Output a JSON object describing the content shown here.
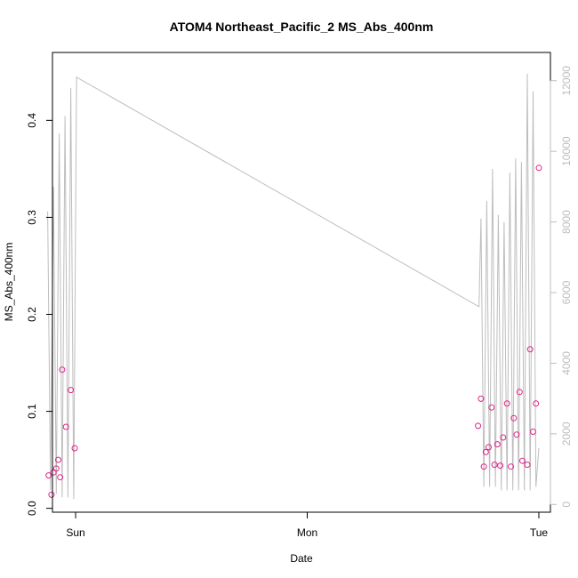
{
  "chart_data": {
    "type": "scatter",
    "title": "ATOM4 Northeast_Pacific_2 MS_Abs_400nm",
    "xlabel": "Date",
    "ylabel": "MS_Abs_400nm",
    "x_ticks": [
      {
        "value": 0,
        "label": "Sun"
      },
      {
        "value": 24,
        "label": "Mon"
      },
      {
        "value": 48,
        "label": "Tue"
      }
    ],
    "xlim": [
      -2.4,
      49.2
    ],
    "ylim": [
      -0.004,
      0.47
    ],
    "y_ticks": [
      0.0,
      0.1,
      0.2,
      0.3,
      0.4
    ],
    "y_tick_labels": [
      "0.0",
      "0.1",
      "0.2",
      "0.3",
      "0.4"
    ],
    "y2lim": [
      -220,
      12800
    ],
    "y2_ticks": [
      0,
      2000,
      4000,
      6000,
      8000,
      10000,
      12000
    ],
    "y2_tick_labels": [
      "0",
      "2000",
      "4000",
      "6000",
      "8000",
      "10000",
      "12000"
    ],
    "grid": false,
    "series": [
      {
        "kind": "points",
        "color": "#e0218a",
        "x": [
          -2.8,
          -2.5,
          -2.3,
          -2.0,
          -1.8,
          -1.6,
          -1.4,
          -1.0,
          -0.5,
          -0.1,
          41.7,
          42.0,
          42.3,
          42.5,
          42.8,
          43.1,
          43.4,
          43.7,
          44.0,
          44.3,
          44.7,
          45.1,
          45.4,
          45.7,
          46.0,
          46.3,
          46.8,
          47.1,
          47.4,
          47.7,
          48.0
        ],
        "y": [
          0.034,
          0.014,
          0.037,
          0.041,
          0.05,
          0.032,
          0.143,
          0.084,
          0.122,
          0.062,
          0.085,
          0.113,
          0.043,
          0.058,
          0.063,
          0.104,
          0.045,
          0.066,
          0.044,
          0.073,
          0.108,
          0.043,
          0.093,
          0.076,
          0.12,
          0.049,
          0.045,
          0.164,
          0.079,
          0.108,
          0.351
        ]
      },
      {
        "kind": "line",
        "color": "#bdbdbd",
        "axis": "right",
        "x": [
          -2.9,
          -2.6,
          -2.3,
          -2.0,
          -1.7,
          -1.4,
          -1.1,
          -0.8,
          -0.5,
          -0.2,
          0.1,
          41.8,
          42.0,
          42.3,
          42.6,
          42.9,
          43.2,
          43.5,
          43.8,
          44.1,
          44.4,
          44.7,
          45.0,
          45.3,
          45.6,
          45.9,
          46.2,
          46.5,
          46.8,
          47.1,
          47.4,
          47.7,
          48.0
        ],
        "y": [
          8300,
          400,
          9000,
          300,
          10500,
          200,
          11000,
          200,
          11800,
          150,
          12100,
          5600,
          8100,
          500,
          8600,
          500,
          9500,
          500,
          8200,
          400,
          8000,
          400,
          9400,
          400,
          9800,
          400,
          9700,
          400,
          12200,
          400,
          11700,
          500,
          1600
        ]
      }
    ]
  }
}
